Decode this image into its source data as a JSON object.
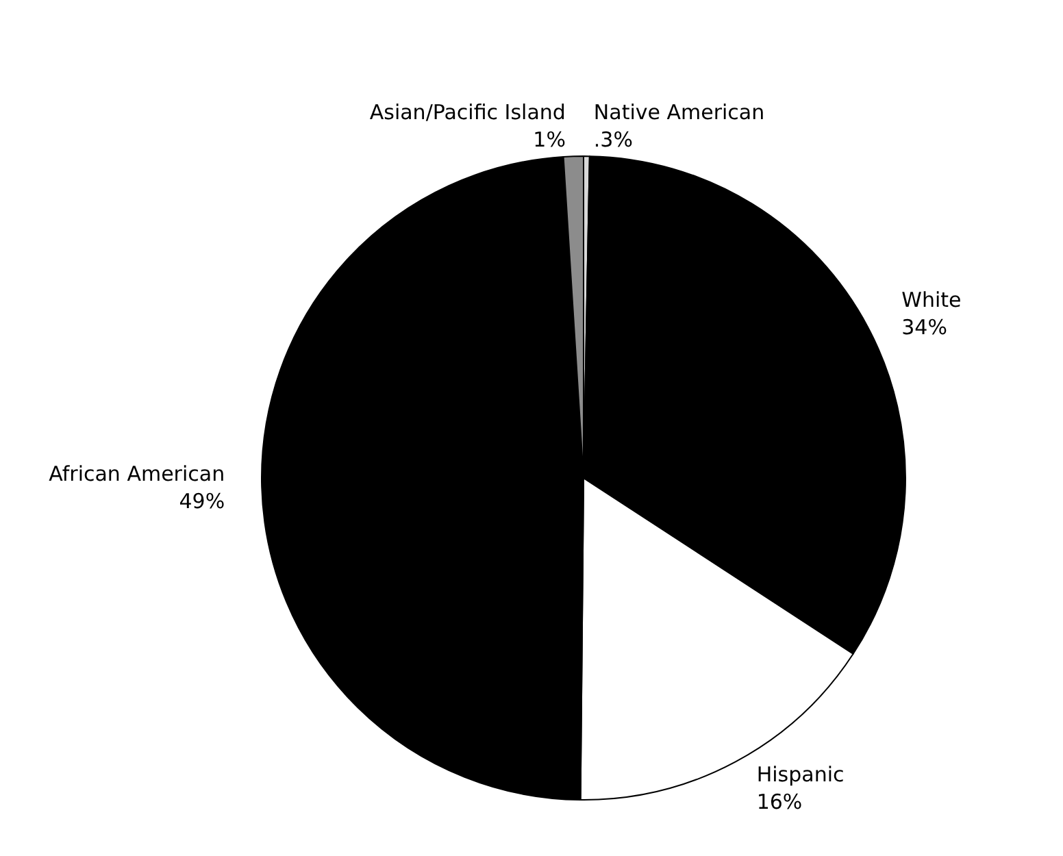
{
  "chart_data": {
    "type": "pie",
    "categories": [
      "Native American",
      "White",
      "Hispanic",
      "African American",
      "Asian/Pacific Island"
    ],
    "values": [
      0.3,
      34,
      16,
      49,
      1
    ],
    "colors": [
      "#d8d8d8",
      "#000000",
      "#ffffff",
      "#000000",
      "#8c8c8c"
    ],
    "value_labels": [
      ".3%",
      "34%",
      "16%",
      "49%",
      "1%"
    ]
  }
}
